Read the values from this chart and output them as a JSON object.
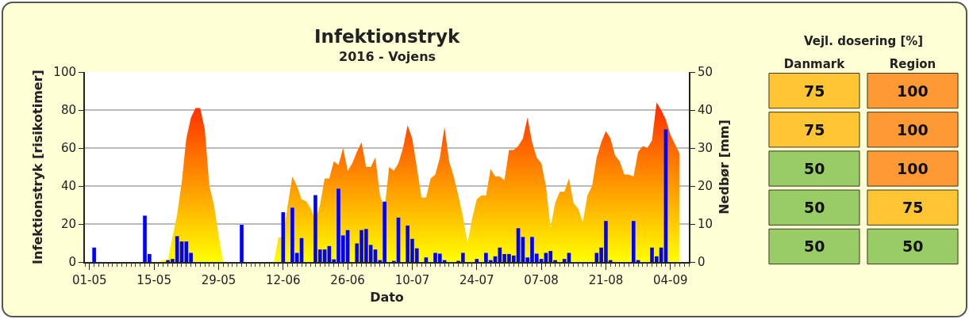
{
  "chart_data": [
    {
      "type": "area",
      "title": "Infektionstryk",
      "subtitle": "2016 - Vojens",
      "xlabel": "Dato",
      "ylabel": "Infektionstryk [risikotimer]",
      "y2label": "Nedbør [mm]",
      "series": [
        {
          "type": "area",
          "color": "#ff2a00",
          "x": [
            "2016-05-16",
            "2016-05-17",
            "2016-05-18",
            "2016-05-19",
            "2016-05-20",
            "2016-05-21",
            "2016-05-22",
            "2016-05-23",
            "2016-05-24",
            "2016-05-25",
            "2016-05-26",
            "2016-05-27",
            "2016-05-28",
            "2016-05-29",
            "2016-05-30",
            "2016-06-10",
            "2016-06-11",
            "2016-06-12",
            "2016-06-13",
            "2016-06-14",
            "2016-06-15",
            "2016-06-16",
            "2016-06-17",
            "2016-06-18",
            "2016-06-19",
            "2016-06-20",
            "2016-06-21",
            "2016-06-22",
            "2016-06-23",
            "2016-06-24",
            "2016-06-25",
            "2016-06-26",
            "2016-06-27",
            "2016-06-28",
            "2016-06-29",
            "2016-06-30",
            "2016-07-01",
            "2016-07-02",
            "2016-07-03",
            "2016-07-04",
            "2016-07-05",
            "2016-07-06",
            "2016-07-07",
            "2016-07-08",
            "2016-07-09",
            "2016-07-10",
            "2016-07-11",
            "2016-07-12",
            "2016-07-13",
            "2016-07-14",
            "2016-07-15",
            "2016-07-16",
            "2016-07-17",
            "2016-07-18",
            "2016-07-19",
            "2016-07-20",
            "2016-07-21",
            "2016-07-22",
            "2016-07-23",
            "2016-07-24",
            "2016-07-25",
            "2016-07-26",
            "2016-07-27",
            "2016-07-28",
            "2016-07-29",
            "2016-07-30",
            "2016-07-31",
            "2016-08-01",
            "2016-08-02",
            "2016-08-03",
            "2016-08-04",
            "2016-08-05",
            "2016-08-06",
            "2016-08-07",
            "2016-08-08",
            "2016-08-09",
            "2016-08-10",
            "2016-08-11",
            "2016-08-12",
            "2016-08-13",
            "2016-08-14",
            "2016-08-15",
            "2016-08-16",
            "2016-08-17",
            "2016-08-18",
            "2016-08-19",
            "2016-08-20",
            "2016-08-21",
            "2016-08-22",
            "2016-08-23",
            "2016-08-24",
            "2016-08-25",
            "2016-08-26",
            "2016-08-27",
            "2016-08-28",
            "2016-08-29",
            "2016-08-30",
            "2016-08-31",
            "2016-09-01",
            "2016-09-02",
            "2016-09-03",
            "2016-09-04",
            "2016-09-05",
            "2016-09-06"
          ],
          "values": [
            0,
            1,
            1,
            13,
            25,
            42,
            65,
            76,
            81,
            81,
            70,
            40,
            30,
            14,
            0,
            0,
            13,
            13,
            30,
            45,
            40,
            33,
            32,
            28,
            22,
            30,
            44,
            44,
            53,
            51,
            60,
            48,
            52,
            58,
            63,
            50,
            50,
            55,
            35,
            28,
            50,
            48,
            52,
            60,
            72,
            65,
            50,
            34,
            34,
            44,
            46,
            55,
            71,
            53,
            45,
            35,
            24,
            10,
            23,
            33,
            35,
            35,
            49,
            45,
            45,
            43,
            59,
            59,
            61,
            65,
            76,
            63,
            55,
            52,
            40,
            18,
            31,
            37,
            37,
            44,
            31,
            28,
            21,
            35,
            40,
            55,
            63,
            69,
            65,
            56,
            53,
            46,
            46,
            45,
            58,
            61,
            60,
            64,
            84,
            80,
            75,
            67,
            62,
            57
          ]
        },
        {
          "type": "bar",
          "axis": "y2",
          "color": "#0000ff",
          "x": [
            "2016-05-02",
            "2016-05-13",
            "2016-05-14",
            "2016-05-18",
            "2016-05-19",
            "2016-05-20",
            "2016-05-21",
            "2016-05-22",
            "2016-05-23",
            "2016-06-03",
            "2016-06-12",
            "2016-06-14",
            "2016-06-15",
            "2016-06-16",
            "2016-06-19",
            "2016-06-20",
            "2016-06-21",
            "2016-06-22",
            "2016-06-23",
            "2016-06-24",
            "2016-06-25",
            "2016-06-26",
            "2016-06-28",
            "2016-06-29",
            "2016-06-30",
            "2016-07-01",
            "2016-07-02",
            "2016-07-03",
            "2016-07-04",
            "2016-07-06",
            "2016-07-07",
            "2016-07-09",
            "2016-07-10",
            "2016-07-11",
            "2016-07-13",
            "2016-07-15",
            "2016-07-16",
            "2016-07-17",
            "2016-07-20",
            "2016-07-21",
            "2016-07-24",
            "2016-07-26",
            "2016-07-27",
            "2016-07-28",
            "2016-07-29",
            "2016-07-30",
            "2016-07-31",
            "2016-08-01",
            "2016-08-02",
            "2016-08-03",
            "2016-08-04",
            "2016-08-05",
            "2016-08-06",
            "2016-08-07",
            "2016-08-08",
            "2016-08-09",
            "2016-08-10",
            "2016-08-12",
            "2016-08-13",
            "2016-08-19",
            "2016-08-20",
            "2016-08-21",
            "2016-08-22",
            "2016-08-27",
            "2016-08-28",
            "2016-08-31",
            "2016-09-01",
            "2016-09-02",
            "2016-09-03"
          ],
          "values": [
            3.8,
            12.2,
            2.1,
            0.5,
            0.8,
            6.8,
            5.4,
            5.4,
            2.4,
            9.8,
            13.1,
            14.3,
            2.4,
            6.3,
            17.6,
            3.3,
            3.3,
            4.2,
            0.7,
            19.3,
            7.0,
            8.4,
            4.9,
            8.4,
            8.7,
            4.5,
            3.3,
            0.5,
            15.9,
            0.3,
            11.7,
            9.6,
            6.1,
            3.6,
            1.2,
            2.4,
            2.2,
            0.5,
            0.3,
            2.4,
            0.8,
            2.4,
            0.5,
            1.5,
            3.8,
            2.1,
            2.1,
            1.7,
            8.9,
            6.6,
            1.2,
            6.6,
            2.2,
            0.8,
            2.4,
            2.9,
            0.5,
            0.8,
            2.4,
            2.4,
            3.8,
            10.8,
            0.5,
            10.8,
            0.5,
            3.8,
            1.5,
            3.8,
            34.9
          ]
        }
      ],
      "xlim": [
        "2016-04-30",
        "2016-09-08"
      ],
      "xticks": [
        {
          "value": "2016-05-01",
          "label": "01-05"
        },
        {
          "value": "2016-05-15",
          "label": "15-05"
        },
        {
          "value": "2016-05-29",
          "label": "29-05"
        },
        {
          "value": "2016-06-12",
          "label": "12-06"
        },
        {
          "value": "2016-06-26",
          "label": "26-06"
        },
        {
          "value": "2016-07-10",
          "label": "10-07"
        },
        {
          "value": "2016-07-24",
          "label": "24-07"
        },
        {
          "value": "2016-08-07",
          "label": "07-08"
        },
        {
          "value": "2016-08-21",
          "label": "21-08"
        },
        {
          "value": "2016-09-04",
          "label": "04-09"
        }
      ],
      "ylim": [
        0,
        100
      ],
      "yticks": [
        0,
        20,
        40,
        60,
        80,
        100
      ],
      "y2lim": [
        0,
        50
      ],
      "y2ticks": [
        0,
        10,
        20,
        30,
        40,
        50
      ],
      "grid": "y"
    },
    {
      "type": "heatmap",
      "title": "Vejl. dosering [%]",
      "categories": [
        "Danmark",
        "Region"
      ],
      "y_categories": [
        null,
        null,
        null,
        null,
        null
      ],
      "tick_labels": "x",
      "cells": [
        [
          75,
          100
        ],
        [
          75,
          100
        ],
        [
          50,
          100
        ],
        [
          50,
          75
        ],
        [
          50,
          50
        ]
      ],
      "data_labels": true
    }
  ]
}
